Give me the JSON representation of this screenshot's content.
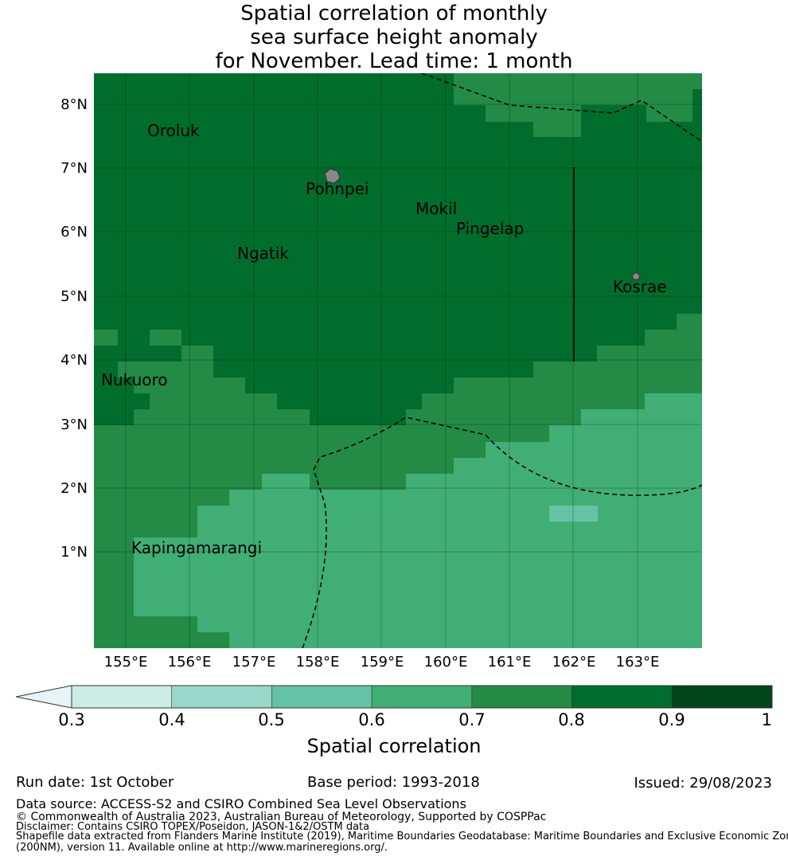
{
  "title_lines": [
    "Spatial correlation of monthly",
    "sea surface height anomaly",
    "for November. Lead time: 1 month"
  ],
  "lat_labels": [
    "8°N",
    "7°N",
    "6°N",
    "5°N",
    "4°N",
    "3°N",
    "2°N",
    "1°N"
  ],
  "lon_labels": [
    "155°E",
    "156°E",
    "157°E",
    "158°E",
    "159°E",
    "160°E",
    "161°E",
    "162°E",
    "163°E"
  ],
  "places": [
    "Oroluk",
    "Pohnpei",
    "Mokil",
    "Pingelap",
    "Ngatik",
    "Kosrae",
    "Nukuoro",
    "Kapingamarangi"
  ],
  "colorbar": {
    "ticks": [
      "0.3",
      "0.4",
      "0.5",
      "0.6",
      "0.7",
      "0.8",
      "0.9",
      "1"
    ],
    "colors": [
      "#e5f5f9",
      "#ccece6",
      "#99d8c9",
      "#66c2a4",
      "#41ae76",
      "#238b45",
      "#006d2c",
      "#00441b"
    ],
    "label": "Spatial correlation"
  },
  "footer": {
    "run_date": "Run date: 1st October",
    "base_period": "Base period: 1993-2018",
    "issued": "Issued: 29/08/2023",
    "data_source": "Data source: ACCESS-S2 and CSIRO Combined Sea Level Observations",
    "copyright": "© Commonwealth of Australia 2023, Australian Bureau of Meteorology, Supported by COSPPac",
    "disclaimer": "Disclaimer: Contains CSIRO TOPEX/Poseidon, JASON-1&2/OSTM data",
    "shapefile1": "Shapefile data extracted from Flanders Marine Institute (2019), Maritime Boundaries Geodatabase: Maritime Boundaries and Exclusive Economic Zones",
    "shapefile2": "(200NM), version 11. Available online at http://www.marineregions.org/."
  }
}
